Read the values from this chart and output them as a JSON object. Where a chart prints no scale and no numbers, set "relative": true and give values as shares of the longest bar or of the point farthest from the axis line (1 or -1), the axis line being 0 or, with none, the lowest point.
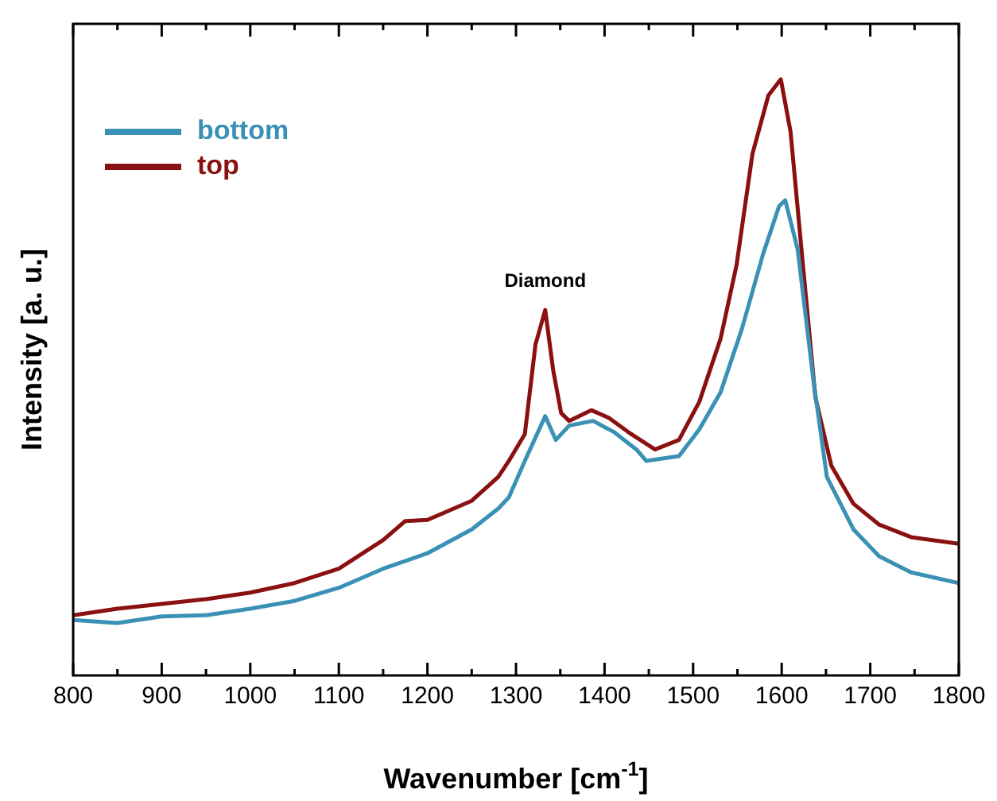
{
  "chart_data": {
    "type": "line",
    "relative": true,
    "xlabel": "Wavenumber [cm$^{-1}$]",
    "ylabel": "Intensity [a. u.]",
    "xlim": [
      800,
      1800
    ],
    "xticks": [
      800,
      {
        "value": 850,
        "label": null
      },
      900,
      {
        "value": 950,
        "label": null
      },
      1000,
      {
        "value": 1050,
        "label": null
      },
      1100,
      {
        "value": 1150,
        "label": null
      },
      1200,
      {
        "value": 1250,
        "label": null
      },
      1300,
      {
        "value": 1350,
        "label": null
      },
      1400,
      {
        "value": 1450,
        "label": null
      },
      1500,
      {
        "value": 1550,
        "label": null
      },
      1600,
      {
        "value": 1650,
        "label": null
      },
      1700,
      {
        "value": 1750,
        "label": null
      },
      1800
    ],
    "legend": "top left",
    "marker": "none",
    "line_style": "solid",
    "annotations": [
      {
        "text": "Diamond",
        "x": 1333,
        "y": 0.613
      }
    ],
    "series": [
      {
        "name": "bottom",
        "color": "#3a91b5",
        "x": [
          800,
          850,
          900,
          950,
          1000,
          1050,
          1100,
          1150,
          1200,
          1250,
          1280,
          1292,
          1310,
          1333,
          1345,
          1360,
          1387,
          1411,
          1436,
          1447,
          1484,
          1507,
          1531,
          1555,
          1579,
          1597,
          1604,
          1618,
          1636,
          1651,
          1681,
          1710,
          1746,
          1800
        ],
        "values": [
          0.093,
          0.088,
          0.099,
          0.101,
          0.112,
          0.125,
          0.147,
          0.179,
          0.205,
          0.245,
          0.28,
          0.299,
          0.36,
          0.435,
          0.395,
          0.419,
          0.427,
          0.408,
          0.379,
          0.36,
          0.368,
          0.413,
          0.475,
          0.581,
          0.707,
          0.787,
          0.797,
          0.715,
          0.493,
          0.333,
          0.245,
          0.2,
          0.173,
          0.155
        ]
      },
      {
        "name": "top",
        "color": "#8b1010",
        "x": [
          800,
          850,
          900,
          950,
          1000,
          1050,
          1100,
          1150,
          1175,
          1200,
          1250,
          1280,
          1292,
          1310,
          1322,
          1333,
          1342,
          1351,
          1360,
          1385,
          1405,
          1430,
          1457,
          1484,
          1507,
          1531,
          1549,
          1567,
          1585,
          1599,
          1610,
          1624,
          1638,
          1656,
          1681,
          1710,
          1746,
          1800
        ],
        "values": [
          0.101,
          0.112,
          0.12,
          0.128,
          0.139,
          0.155,
          0.179,
          0.227,
          0.259,
          0.261,
          0.293,
          0.333,
          0.36,
          0.405,
          0.555,
          0.613,
          0.512,
          0.44,
          0.427,
          0.445,
          0.432,
          0.405,
          0.379,
          0.395,
          0.459,
          0.565,
          0.688,
          0.875,
          0.973,
          1,
          0.912,
          0.688,
          0.467,
          0.352,
          0.288,
          0.253,
          0.232,
          0.221
        ]
      }
    ]
  }
}
